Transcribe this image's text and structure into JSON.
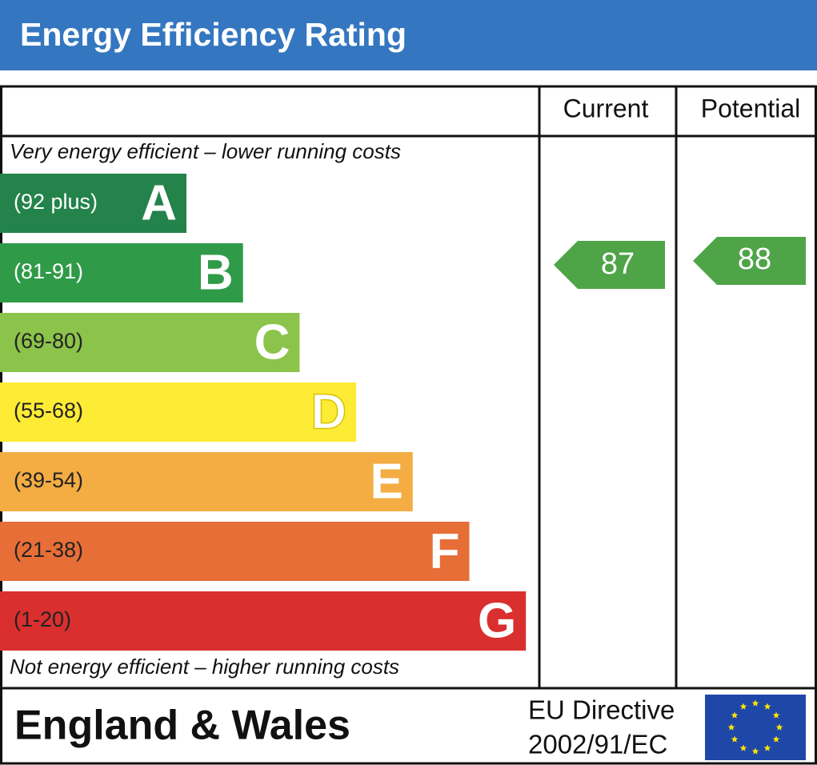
{
  "header": {
    "title": "Energy Efficiency Rating",
    "color": "#3477c0"
  },
  "columns": {
    "current": "Current",
    "potential": "Potential"
  },
  "top_note": "Very energy efficient – lower running costs",
  "bottom_note": "Not energy efficient – higher running costs",
  "bands": [
    {
      "range": "(92 plus)",
      "letter": "A",
      "color": "#23834a"
    },
    {
      "range": "(81-91)",
      "letter": "B",
      "color": "#2f9a48"
    },
    {
      "range": "(69-80)",
      "letter": "C",
      "color": "#8cc34a"
    },
    {
      "range": "(55-68)",
      "letter": "D",
      "color": "#fdeb35"
    },
    {
      "range": "(39-54)",
      "letter": "E",
      "color": "#f3ad43"
    },
    {
      "range": "(21-38)",
      "letter": "F",
      "color": "#e76e37"
    },
    {
      "range": "(1-20)",
      "letter": "G",
      "color": "#da2f2f"
    }
  ],
  "ratings": {
    "current": "87",
    "potential": "88",
    "color": "#4ea447"
  },
  "footer": {
    "region": "England & Wales",
    "directive_line1": "EU Directive",
    "directive_line2": "2002/91/EC"
  }
}
